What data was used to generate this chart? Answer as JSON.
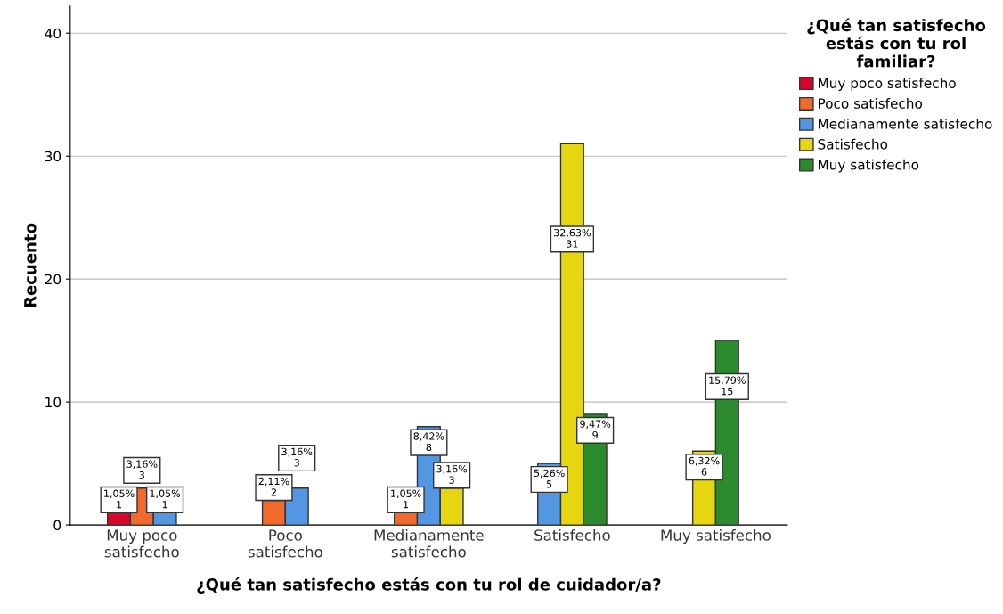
{
  "chart_data": {
    "type": "bar",
    "xlabel": "¿Qué tan satisfecho estás con tu rol de cuidador/a?",
    "ylabel": "Recuento",
    "legend_title": "¿Qué tan satisfecho\nestás con tu rol\nfamiliar?",
    "categories": [
      "Muy poco\nsatisfecho",
      "Poco\nsatisfecho",
      "Medianamente\nsatisfecho",
      "Satisfecho",
      "Muy satisfecho"
    ],
    "series": [
      {
        "name": "Muy poco satisfecho",
        "color": "#d8062c",
        "values": [
          1,
          null,
          null,
          null,
          null
        ],
        "value_labels": [
          "1,05%\n1",
          null,
          null,
          null,
          null
        ]
      },
      {
        "name": "Poco satisfecho",
        "color": "#f26a2b",
        "values": [
          3,
          2,
          1,
          null,
          null
        ],
        "value_labels": [
          "3,16%\n3",
          "2,11%\n2",
          "1,05%\n1",
          null,
          null
        ]
      },
      {
        "name": "Medianamente satisfecho",
        "color": "#5397e3",
        "values": [
          1,
          3,
          8,
          5,
          null
        ],
        "value_labels": [
          "1,05%\n1",
          "3,16%\n3",
          "8,42%\n8",
          "5,26%\n5",
          null
        ]
      },
      {
        "name": "Satisfecho",
        "color": "#e6d60f",
        "values": [
          null,
          null,
          3,
          31,
          6
        ],
        "value_labels": [
          null,
          null,
          "3,16%\n3",
          "32,63%\n31",
          "6,32%\n6"
        ]
      },
      {
        "name": "Muy satisfecho",
        "color": "#2a8a2d",
        "values": [
          null,
          null,
          null,
          9,
          15
        ],
        "value_labels": [
          null,
          null,
          null,
          "9,47%\n9",
          "15,79%\n15"
        ]
      }
    ],
    "ylim": [
      0,
      42.2
    ],
    "yticks": [
      0,
      10,
      20,
      30,
      40
    ],
    "grid": "y",
    "legend": "top right"
  }
}
